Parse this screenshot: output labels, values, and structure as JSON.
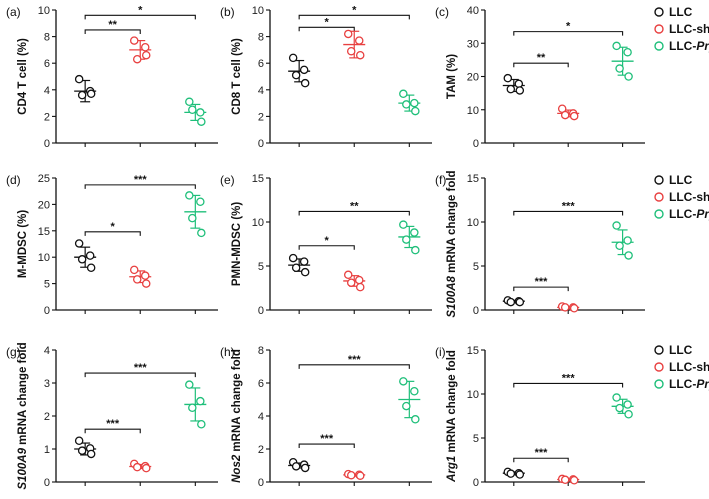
{
  "legend": [
    {
      "prefix": "LLC",
      "italic": "",
      "color": "#111111"
    },
    {
      "prefix": "LLC-sh",
      "italic": "Prps2",
      "color": "#e84040"
    },
    {
      "prefix": "LLC-",
      "italic": "Prps2",
      "color": "#1fbf7a"
    }
  ],
  "chart_data": [
    {
      "type": "scatter",
      "panel": "(a)",
      "ylabel_parts": [
        {
          "t": "CD4 T cell (%)",
          "i": false
        }
      ],
      "ylim": [
        0,
        10
      ],
      "yticks": [
        0,
        2,
        4,
        6,
        8,
        10
      ],
      "series": [
        {
          "name": "LLC",
          "values": [
            4.8,
            3.9,
            3.6,
            3.7
          ],
          "mean": 3.9,
          "sd": 0.8
        },
        {
          "name": "LLC-shPrps2",
          "values": [
            7.7,
            7.2,
            6.3,
            6.6
          ],
          "mean": 7.0,
          "sd": 0.7
        },
        {
          "name": "LLC-Prps2",
          "values": [
            3.1,
            2.3,
            2.5,
            1.6
          ],
          "mean": 2.3,
          "sd": 0.6
        }
      ],
      "significance": [
        {
          "groups": [
            0,
            1
          ],
          "label": "**",
          "y": 8.5
        },
        {
          "groups": [
            0,
            2
          ],
          "label": "*",
          "y": 9.6
        }
      ]
    },
    {
      "type": "scatter",
      "panel": "(b)",
      "ylabel_parts": [
        {
          "t": "CD8 T cell (%)",
          "i": false
        }
      ],
      "ylim": [
        0,
        10
      ],
      "yticks": [
        0,
        2,
        4,
        6,
        8,
        10
      ],
      "series": [
        {
          "name": "LLC",
          "values": [
            6.4,
            5.5,
            5.1,
            4.5
          ],
          "mean": 5.4,
          "sd": 0.8
        },
        {
          "name": "LLC-shPrps2",
          "values": [
            8.2,
            7.7,
            6.9,
            6.6
          ],
          "mean": 7.4,
          "sd": 1.0
        },
        {
          "name": "LLC-Prps2",
          "values": [
            3.7,
            3.0,
            2.9,
            2.4
          ],
          "mean": 3.0,
          "sd": 0.6
        }
      ],
      "significance": [
        {
          "groups": [
            0,
            1
          ],
          "label": "*",
          "y": 8.7
        },
        {
          "groups": [
            0,
            2
          ],
          "label": "*",
          "y": 9.6
        }
      ]
    },
    {
      "type": "scatter",
      "panel": "(c)",
      "ylabel_parts": [
        {
          "t": "TAM (%)",
          "i": false
        }
      ],
      "ylim": [
        0,
        40
      ],
      "yticks": [
        0,
        10,
        20,
        30,
        40
      ],
      "series": [
        {
          "name": "LLC",
          "values": [
            19.5,
            17.8,
            16.2,
            15.8
          ],
          "mean": 17.3,
          "sd": 1.8
        },
        {
          "name": "LLC-shPrps2",
          "values": [
            10.3,
            8.9,
            8.4,
            8.1
          ],
          "mean": 8.9,
          "sd": 1.0
        },
        {
          "name": "LLC-Prps2",
          "values": [
            29.2,
            27.3,
            22.4,
            20.0
          ],
          "mean": 24.6,
          "sd": 4.2
        }
      ],
      "significance": [
        {
          "groups": [
            0,
            1
          ],
          "label": "**",
          "y": 24.0
        },
        {
          "groups": [
            0,
            2
          ],
          "label": "*",
          "y": 33.5
        }
      ]
    },
    {
      "type": "scatter",
      "panel": "(d)",
      "ylabel_parts": [
        {
          "t": "M-MDSC (%)",
          "i": false
        }
      ],
      "ylim": [
        0,
        25
      ],
      "yticks": [
        0,
        5,
        10,
        15,
        20,
        25
      ],
      "series": [
        {
          "name": "LLC",
          "values": [
            12.6,
            10.3,
            9.6,
            8.0
          ],
          "mean": 10.0,
          "sd": 1.9
        },
        {
          "name": "LLC-shPrps2",
          "values": [
            7.6,
            6.5,
            5.8,
            5.0
          ],
          "mean": 6.3,
          "sd": 1.1
        },
        {
          "name": "LLC-Prps2",
          "values": [
            21.7,
            20.5,
            17.4,
            14.6
          ],
          "mean": 18.6,
          "sd": 3.1
        }
      ],
      "significance": [
        {
          "groups": [
            0,
            1
          ],
          "label": "*",
          "y": 14.8
        },
        {
          "groups": [
            0,
            2
          ],
          "label": "***",
          "y": 23.7
        }
      ]
    },
    {
      "type": "scatter",
      "panel": "(e)",
      "ylabel_parts": [
        {
          "t": "PMN-MDSC (%)",
          "i": false
        }
      ],
      "ylim": [
        0,
        15
      ],
      "yticks": [
        0,
        5,
        10,
        15
      ],
      "series": [
        {
          "name": "LLC",
          "values": [
            5.9,
            5.5,
            4.8,
            4.3
          ],
          "mean": 5.1,
          "sd": 0.7
        },
        {
          "name": "LLC-shPrps2",
          "values": [
            4.0,
            3.4,
            3.1,
            2.6
          ],
          "mean": 3.3,
          "sd": 0.6
        },
        {
          "name": "LLC-Prps2",
          "values": [
            9.7,
            8.8,
            8.0,
            6.8
          ],
          "mean": 8.3,
          "sd": 1.2
        }
      ],
      "significance": [
        {
          "groups": [
            0,
            1
          ],
          "label": "*",
          "y": 7.3
        },
        {
          "groups": [
            0,
            2
          ],
          "label": "**",
          "y": 11.2
        }
      ]
    },
    {
      "type": "scatter",
      "panel": "(f)",
      "ylabel_parts": [
        {
          "t": "S100A8",
          "i": true
        },
        {
          "t": " mRNA change fold",
          "i": false
        }
      ],
      "ylim": [
        0,
        15
      ],
      "yticks": [
        0,
        5,
        10,
        15
      ],
      "series": [
        {
          "name": "LLC",
          "values": [
            1.1,
            1.0,
            0.9,
            0.9
          ],
          "mean": 1.0,
          "sd": 0.1
        },
        {
          "name": "LLC-shPrps2",
          "values": [
            0.4,
            0.3,
            0.3,
            0.2
          ],
          "mean": 0.3,
          "sd": 0.1
        },
        {
          "name": "LLC-Prps2",
          "values": [
            9.6,
            7.9,
            7.3,
            6.2
          ],
          "mean": 7.7,
          "sd": 1.4
        }
      ],
      "significance": [
        {
          "groups": [
            0,
            1
          ],
          "label": "***",
          "y": 2.6
        },
        {
          "groups": [
            0,
            2
          ],
          "label": "***",
          "y": 11.2
        }
      ]
    },
    {
      "type": "scatter",
      "panel": "(g)",
      "ylabel_parts": [
        {
          "t": "S100A9",
          "i": true
        },
        {
          "t": " mRNA change fold",
          "i": false
        }
      ],
      "ylim": [
        0,
        4
      ],
      "yticks": [
        0,
        1,
        2,
        3,
        4
      ],
      "series": [
        {
          "name": "LLC",
          "values": [
            1.25,
            1.02,
            0.95,
            0.85
          ],
          "mean": 1.0,
          "sd": 0.18
        },
        {
          "name": "LLC-shPrps2",
          "values": [
            0.55,
            0.48,
            0.45,
            0.42
          ],
          "mean": 0.47,
          "sd": 0.06
        },
        {
          "name": "LLC-Prps2",
          "values": [
            2.95,
            2.45,
            2.25,
            1.75
          ],
          "mean": 2.35,
          "sd": 0.5
        }
      ],
      "significance": [
        {
          "groups": [
            0,
            1
          ],
          "label": "***",
          "y": 1.6
        },
        {
          "groups": [
            0,
            2
          ],
          "label": "***",
          "y": 3.3
        }
      ]
    },
    {
      "type": "scatter",
      "panel": "(h)",
      "ylabel_parts": [
        {
          "t": "Nos2",
          "i": true
        },
        {
          "t": " mRNA change fold",
          "i": false
        }
      ],
      "ylim": [
        0,
        8
      ],
      "yticks": [
        0,
        2,
        4,
        6,
        8
      ],
      "series": [
        {
          "name": "LLC",
          "values": [
            1.2,
            1.05,
            0.95,
            0.85
          ],
          "mean": 1.0,
          "sd": 0.15
        },
        {
          "name": "LLC-shPrps2",
          "values": [
            0.48,
            0.44,
            0.41,
            0.38
          ],
          "mean": 0.43,
          "sd": 0.05
        },
        {
          "name": "LLC-Prps2",
          "values": [
            6.1,
            5.5,
            4.6,
            3.8
          ],
          "mean": 5.0,
          "sd": 1.1
        }
      ],
      "significance": [
        {
          "groups": [
            0,
            1
          ],
          "label": "***",
          "y": 2.3
        },
        {
          "groups": [
            0,
            2
          ],
          "label": "***",
          "y": 7.1
        }
      ]
    },
    {
      "type": "scatter",
      "panel": "(i)",
      "ylabel_parts": [
        {
          "t": "Arg1",
          "i": true
        },
        {
          "t": " mRNA change fold",
          "i": false
        }
      ],
      "ylim": [
        0,
        15
      ],
      "yticks": [
        0,
        5,
        10,
        15
      ],
      "series": [
        {
          "name": "LLC",
          "values": [
            1.15,
            1.0,
            0.95,
            0.85
          ],
          "mean": 1.0,
          "sd": 0.15
        },
        {
          "name": "LLC-shPrps2",
          "values": [
            0.35,
            0.3,
            0.25,
            0.2
          ],
          "mean": 0.28,
          "sd": 0.06
        },
        {
          "name": "LLC-Prps2",
          "values": [
            9.6,
            8.8,
            8.4,
            7.7
          ],
          "mean": 8.6,
          "sd": 0.8
        }
      ],
      "significance": [
        {
          "groups": [
            0,
            1
          ],
          "label": "***",
          "y": 2.7
        },
        {
          "groups": [
            0,
            2
          ],
          "label": "***",
          "y": 11.2
        }
      ]
    }
  ],
  "colors": {
    "group0": "#111111",
    "group1": "#e84040",
    "group2": "#1fbf7a"
  }
}
